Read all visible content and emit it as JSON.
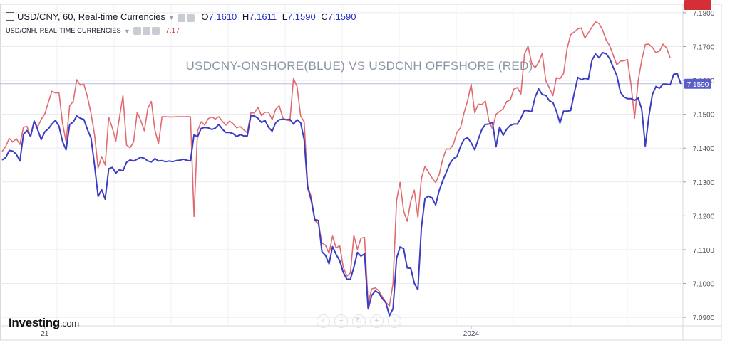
{
  "header": {
    "symbol": "USD/CNY, 60, Real-time Currencies",
    "open_label": "O",
    "open": "7.1610",
    "high_label": "H",
    "high": "7.1611",
    "low_label": "L",
    "low": "7.1590",
    "close_label": "C",
    "close": "7.1590"
  },
  "sub_header": {
    "symbol": "USD/CNH, REAL-TIME CURRENCIES",
    "value": "7.17"
  },
  "logo": {
    "name": "Investing",
    "suffix": ".com"
  },
  "nav_icons": [
    "chevron-left-icon",
    "minus-icon",
    "reset-icon",
    "plus-icon",
    "chevron-right-icon"
  ],
  "colors": {
    "cny": "#3b3cc4",
    "cnh": "#e06a6f",
    "cnh_tag": "#d42f36",
    "cny_tag": "#5b5ec9",
    "grid": "#e8eaee",
    "ref_line": "#b9bce6"
  },
  "chart_data": {
    "type": "line",
    "title": "USDCNY-ONSHORE(BLUE) VS USDCNH OFFSHORE (RED)",
    "ylim": [
      7.0875,
      7.1825
    ],
    "yticks": [
      "7.1800",
      "7.1700",
      "7.1600",
      "7.1500",
      "7.1400",
      "7.1300",
      "7.1200",
      "7.1100",
      "7.1000",
      "7.0900"
    ],
    "x_labels": [
      {
        "label": "21",
        "index": 12
      },
      {
        "label": "2024",
        "index": 132
      }
    ],
    "last_values": {
      "USD/CNH": "7.1667",
      "USD/CNY": "7.1590"
    },
    "series": [
      {
        "name": "USD/CNY",
        "values": [
          7.1365,
          7.1372,
          7.1393,
          7.1391,
          7.1382,
          7.1362,
          7.1441,
          7.1452,
          7.1434,
          7.148,
          7.1455,
          7.1425,
          7.1448,
          7.1457,
          7.1471,
          7.1482,
          7.1465,
          7.142,
          7.1395,
          7.147,
          7.1477,
          7.1495,
          7.1488,
          7.1485,
          7.1455,
          7.143,
          7.135,
          7.1257,
          7.1277,
          7.1249,
          7.1339,
          7.1343,
          7.1326,
          7.1336,
          7.1333,
          7.1358,
          7.1365,
          7.1362,
          7.1367,
          7.1373,
          7.137,
          7.1362,
          7.1359,
          7.1369,
          7.1362,
          7.1363,
          7.136,
          7.1362,
          7.136,
          7.1363,
          7.1364,
          7.1367,
          7.1364,
          7.1362,
          7.144,
          7.1433,
          7.1458,
          7.1461,
          7.146,
          7.1455,
          7.1459,
          7.147,
          7.1456,
          7.1446,
          7.1446,
          7.1443,
          7.1434,
          7.144,
          7.1436,
          7.1436,
          7.1496,
          7.1495,
          7.1488,
          7.1476,
          7.1482,
          7.1461,
          7.145,
          7.1475,
          7.1484,
          7.1485,
          7.1484,
          7.1485,
          7.1471,
          7.1484,
          7.1475,
          7.1425,
          7.1284,
          7.1246,
          7.1189,
          7.1186,
          7.1094,
          7.1083,
          7.1058,
          7.1109,
          7.1086,
          7.1068,
          7.1033,
          7.1013,
          7.1012,
          7.1048,
          7.1092,
          7.1081,
          7.1088,
          7.0925,
          7.0965,
          7.0978,
          7.0972,
          7.0955,
          7.0943,
          7.0905,
          7.0925,
          7.1075,
          7.1108,
          7.1103,
          7.1046,
          7.1045,
          7.1001,
          7.0982,
          7.1164,
          7.1251,
          7.1258,
          7.1253,
          7.1232,
          7.1275,
          7.1304,
          7.1328,
          7.1354,
          7.1369,
          7.1375,
          7.1405,
          7.1426,
          7.1431,
          7.1416,
          7.1395,
          7.1426,
          7.1455,
          7.147,
          7.1471,
          7.1476,
          7.1404,
          7.1462,
          7.1438,
          7.1456,
          7.1467,
          7.1471,
          7.1471,
          7.1489,
          7.1512,
          7.151,
          7.1508,
          7.155,
          7.1575,
          7.1558,
          7.1556,
          7.154,
          7.1535,
          7.1509,
          7.1474,
          7.1509,
          7.1509,
          7.1511,
          7.1562,
          7.1609,
          7.1602,
          7.1606,
          7.1604,
          7.166,
          7.1678,
          7.1667,
          7.1682,
          7.1679,
          7.1664,
          7.1638,
          7.1614,
          7.1565,
          7.1551,
          7.1546,
          7.1546,
          7.1541,
          7.1548,
          7.1515,
          7.1406,
          7.1492,
          7.1558,
          7.1582,
          7.1577,
          7.1589,
          7.1589,
          7.1587,
          7.1618,
          7.162,
          7.159
        ]
      },
      {
        "name": "USD/CNH",
        "values": [
          7.139,
          7.1405,
          7.1429,
          7.1418,
          7.1428,
          7.1411,
          7.1462,
          7.1464,
          7.1434,
          7.148,
          7.1462,
          7.1485,
          7.1501,
          7.1535,
          7.1568,
          7.1563,
          7.1564,
          7.1474,
          7.1418,
          7.1525,
          7.1538,
          7.1602,
          7.1586,
          7.1589,
          7.1552,
          7.1503,
          7.144,
          7.1341,
          7.1375,
          7.135,
          7.1491,
          7.146,
          7.1421,
          7.149,
          7.1555,
          7.1409,
          7.1401,
          7.1418,
          7.1506,
          7.1482,
          7.1451,
          7.1518,
          7.1538,
          7.1453,
          7.1413,
          7.1493,
          7.1493,
          7.1492,
          7.1492,
          7.1493,
          7.1493,
          7.1493,
          7.1493,
          7.1493,
          7.1198,
          7.145,
          7.1478,
          7.1468,
          7.1487,
          7.1492,
          7.1486,
          7.1493,
          7.1479,
          7.1468,
          7.148,
          7.1472,
          7.146,
          7.1464,
          7.1454,
          7.1445,
          7.1504,
          7.1504,
          7.152,
          7.1496,
          7.1506,
          7.1506,
          7.1484,
          7.1515,
          7.1525,
          7.1489,
          7.1483,
          7.1481,
          7.1606,
          7.1582,
          7.1495,
          7.1478,
          7.1288,
          7.1256,
          7.1186,
          7.1176,
          7.112,
          7.1113,
          7.1089,
          7.114,
          7.1105,
          7.1112,
          7.1049,
          7.1022,
          7.1031,
          7.1142,
          7.1101,
          7.1134,
          7.1136,
          7.0941,
          7.0984,
          7.0987,
          7.0979,
          7.0961,
          7.0944,
          7.0934,
          7.1,
          7.1245,
          7.1299,
          7.1214,
          7.1184,
          7.1243,
          7.1276,
          7.1195,
          7.131,
          7.1346,
          7.1329,
          7.1312,
          7.1298,
          7.1322,
          7.1368,
          7.1397,
          7.1397,
          7.1411,
          7.1447,
          7.146,
          7.1505,
          7.154,
          7.1589,
          7.1505,
          7.153,
          7.1529,
          7.1539,
          7.148,
          7.1457,
          7.15,
          7.1508,
          7.1516,
          7.1538,
          7.1542,
          7.1574,
          7.1579,
          7.156,
          7.1678,
          7.1701,
          7.1651,
          7.1637,
          7.1654,
          7.168,
          7.16,
          7.1578,
          7.1555,
          7.1608,
          7.1605,
          7.162,
          7.1694,
          7.1735,
          7.1743,
          7.1752,
          7.1755,
          7.1725,
          7.1741,
          7.1758,
          7.1773,
          7.1768,
          7.1749,
          7.1719,
          7.1702,
          7.1674,
          7.1646,
          7.1657,
          7.1658,
          7.1662,
          7.1588,
          7.1488,
          7.1599,
          7.166,
          7.1706,
          7.1707,
          7.1698,
          7.1682,
          7.1687,
          7.1707,
          7.1696,
          7.1667
        ]
      }
    ]
  }
}
